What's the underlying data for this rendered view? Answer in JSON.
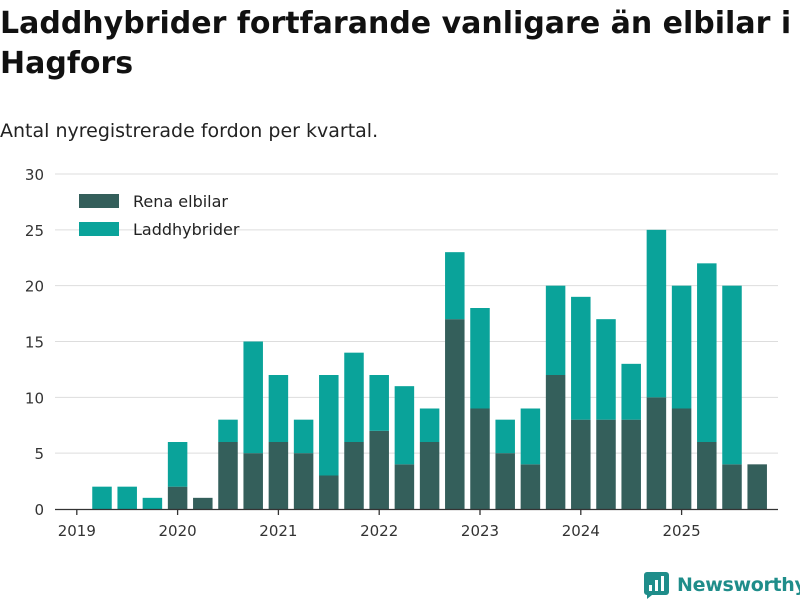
{
  "title": "Laddhybrider fortfarande vanligare än elbilar i Hagfors",
  "subtitle": "Antal nyregistrerade fordon per kvartal.",
  "brand": {
    "name": "Newsworthy",
    "icon": "newsworthy-logo-icon"
  },
  "colors": {
    "elbilar": "#345f5b",
    "laddhybrider": "#0aa39a",
    "grid": "#dddddd",
    "axis": "#333333"
  },
  "chart_data": {
    "type": "bar",
    "stacked": true,
    "title": "Laddhybrider fortfarande vanligare än elbilar i Hagfors",
    "subtitle": "Antal nyregistrerade fordon per kvartal.",
    "xlabel": "",
    "ylabel": "",
    "ylim": [
      0,
      30
    ],
    "yticks": [
      0,
      5,
      10,
      15,
      20,
      25,
      30
    ],
    "xticks": [
      "2019",
      "2020",
      "2021",
      "2022",
      "2023",
      "2024",
      "2025"
    ],
    "legend_position": "top-left",
    "categories": [
      "2019 Q1",
      "2019 Q2",
      "2019 Q3",
      "2019 Q4",
      "2020 Q1",
      "2020 Q2",
      "2020 Q3",
      "2020 Q4",
      "2021 Q1",
      "2021 Q2",
      "2021 Q3",
      "2021 Q4",
      "2022 Q1",
      "2022 Q2",
      "2022 Q3",
      "2022 Q4",
      "2023 Q1",
      "2023 Q2",
      "2023 Q3",
      "2023 Q4",
      "2024 Q1",
      "2024 Q2",
      "2024 Q3",
      "2024 Q4",
      "2025 Q1",
      "2025 Q2",
      "2025 Q3"
    ],
    "series": [
      {
        "name": "Rena elbilar",
        "values": [
          0,
          0,
          0,
          2,
          1,
          6,
          5,
          6,
          5,
          3,
          6,
          7,
          4,
          6,
          17,
          9,
          5,
          4,
          12,
          8,
          8,
          8,
          10,
          9,
          6,
          4,
          4
        ]
      },
      {
        "name": "Laddhybrider",
        "values": [
          2,
          2,
          1,
          4,
          0,
          2,
          10,
          6,
          3,
          9,
          8,
          5,
          7,
          3,
          6,
          9,
          3,
          5,
          8,
          11,
          9,
          5,
          15,
          11,
          16,
          16,
          0
        ]
      }
    ]
  }
}
